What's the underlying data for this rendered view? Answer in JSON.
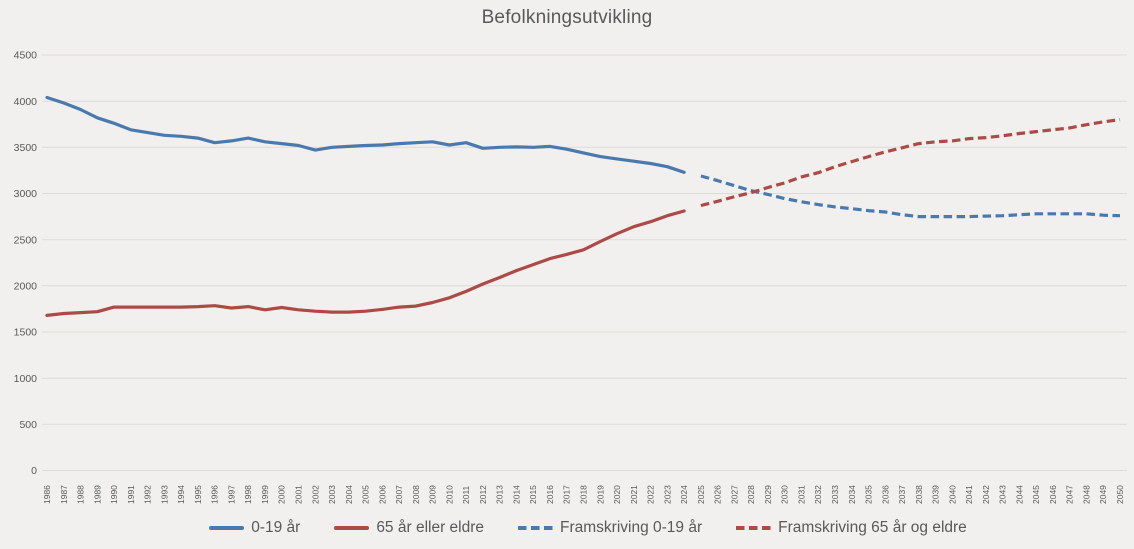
{
  "chart_data": {
    "type": "line",
    "title": "Befolkningsutvikling",
    "xlabel": "",
    "ylabel": "",
    "x": [
      1986,
      1987,
      1988,
      1989,
      1990,
      1991,
      1992,
      1993,
      1994,
      1995,
      1996,
      1997,
      1998,
      1999,
      2000,
      2001,
      2002,
      2003,
      2004,
      2005,
      2006,
      2007,
      2008,
      2009,
      2010,
      2011,
      2012,
      2013,
      2014,
      2015,
      2016,
      2017,
      2018,
      2019,
      2020,
      2021,
      2022,
      2023,
      2024,
      2025,
      2026,
      2027,
      2028,
      2029,
      2030,
      2031,
      2032,
      2033,
      2034,
      2035,
      2036,
      2037,
      2038,
      2039,
      2040,
      2041,
      2042,
      2043,
      2044,
      2045,
      2046,
      2047,
      2048,
      2049,
      2050
    ],
    "ylim": [
      0,
      4500
    ],
    "yticks": [
      0,
      500,
      1000,
      1500,
      2000,
      2500,
      3000,
      3500,
      4000,
      4500
    ],
    "grid": true,
    "legend_position": "bottom",
    "series": [
      {
        "name": "0-19 år",
        "color": "#4a79ae",
        "dashed": false,
        "x_start": 1986,
        "values": [
          4040,
          3980,
          3910,
          3820,
          3760,
          3690,
          3660,
          3630,
          3620,
          3600,
          3550,
          3570,
          3600,
          3560,
          3540,
          3520,
          3470,
          3500,
          3510,
          3520,
          3525,
          3540,
          3550,
          3560,
          3525,
          3550,
          3490,
          3500,
          3505,
          3500,
          3510,
          3480,
          3440,
          3400,
          3375,
          3350,
          3325,
          3290,
          3230
        ]
      },
      {
        "name": "65 år eller eldre",
        "color": "#ad4a45",
        "dashed": false,
        "x_start": 1986,
        "values": [
          1680,
          1700,
          1710,
          1720,
          1770,
          1770,
          1770,
          1770,
          1770,
          1775,
          1785,
          1760,
          1775,
          1740,
          1765,
          1740,
          1725,
          1715,
          1715,
          1725,
          1745,
          1770,
          1780,
          1820,
          1870,
          1940,
          2020,
          2090,
          2165,
          2230,
          2295,
          2340,
          2390,
          2480,
          2565,
          2640,
          2695,
          2760,
          2810
        ]
      },
      {
        "name": "Framskriving 0-19 år",
        "color": "#4a79ae",
        "dashed": true,
        "x_start": 2025,
        "values": [
          3190,
          3140,
          3085,
          3030,
          2990,
          2945,
          2910,
          2880,
          2855,
          2835,
          2815,
          2800,
          2770,
          2750,
          2750,
          2750,
          2750,
          2755,
          2760,
          2770,
          2780,
          2780,
          2780,
          2780,
          2765,
          2760
        ]
      },
      {
        "name": "Framskriving 65 år og eldre",
        "color": "#ad4a45",
        "dashed": true,
        "x_start": 2025,
        "values": [
          2870,
          2915,
          2965,
          3010,
          3065,
          3115,
          3180,
          3225,
          3290,
          3345,
          3400,
          3450,
          3495,
          3540,
          3560,
          3570,
          3595,
          3605,
          3625,
          3650,
          3670,
          3690,
          3710,
          3745,
          3775,
          3800
        ]
      }
    ]
  },
  "theme": {
    "background": "#f1f0ee",
    "gridline": "#dcdbd8",
    "text": "#595959",
    "series_blue": "#4a79ae",
    "series_red": "#ad4a45"
  }
}
